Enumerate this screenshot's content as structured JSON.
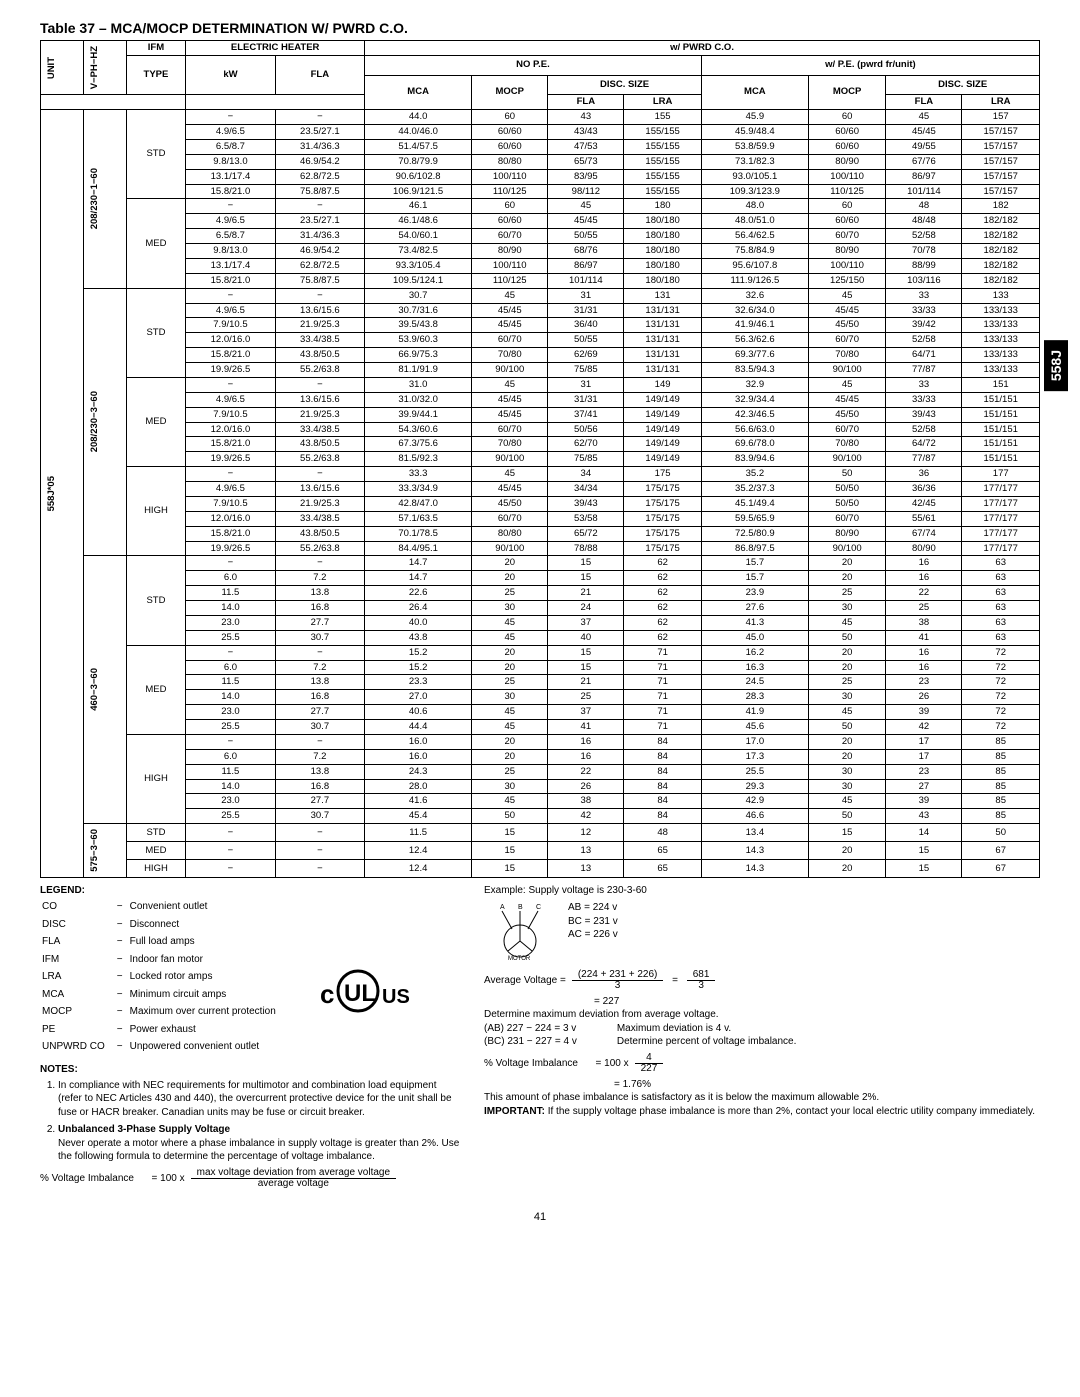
{
  "title": "Table 37 – MCA/MOCP DETERMINATION W/ PWRD C.O.",
  "side_tab": "558J",
  "headers": {
    "unit": "UNIT",
    "vph": "V−PH−HZ",
    "ifm": "IFM",
    "type": "TYPE",
    "eh": "ELECTRIC HEATER",
    "kw": "kW",
    "fla_h": "FLA",
    "pwrd": "w/ PWRD C.O.",
    "nope": "NO P.E.",
    "wpe": "w/ P.E. (pwrd fr/unit)",
    "mca": "MCA",
    "mocp": "MOCP",
    "disc": "DISC. SIZE",
    "fla": "FLA",
    "lra": "LRA"
  },
  "unit": "558J*05",
  "voltages": [
    "208/230−1−60",
    "208/230−3−60",
    "460−3−60",
    "575−3−60"
  ],
  "ifm_types": [
    "STD",
    "MED",
    "HIGH"
  ],
  "groups": [
    {
      "volt": 0,
      "ifm": 0,
      "rows": [
        [
          "−",
          "−",
          "44.0",
          "60",
          "43",
          "155",
          "45.9",
          "60",
          "45",
          "157"
        ],
        [
          "4.9/6.5",
          "23.5/27.1",
          "44.0/46.0",
          "60/60",
          "43/43",
          "155/155",
          "45.9/48.4",
          "60/60",
          "45/45",
          "157/157"
        ],
        [
          "6.5/8.7",
          "31.4/36.3",
          "51.4/57.5",
          "60/60",
          "47/53",
          "155/155",
          "53.8/59.9",
          "60/60",
          "49/55",
          "157/157"
        ],
        [
          "9.8/13.0",
          "46.9/54.2",
          "70.8/79.9",
          "80/80",
          "65/73",
          "155/155",
          "73.1/82.3",
          "80/90",
          "67/76",
          "157/157"
        ],
        [
          "13.1/17.4",
          "62.8/72.5",
          "90.6/102.8",
          "100/110",
          "83/95",
          "155/155",
          "93.0/105.1",
          "100/110",
          "86/97",
          "157/157"
        ],
        [
          "15.8/21.0",
          "75.8/87.5",
          "106.9/121.5",
          "110/125",
          "98/112",
          "155/155",
          "109.3/123.9",
          "110/125",
          "101/114",
          "157/157"
        ]
      ]
    },
    {
      "volt": 0,
      "ifm": 1,
      "rows": [
        [
          "−",
          "−",
          "46.1",
          "60",
          "45",
          "180",
          "48.0",
          "60",
          "48",
          "182"
        ],
        [
          "4.9/6.5",
          "23.5/27.1",
          "46.1/48.6",
          "60/60",
          "45/45",
          "180/180",
          "48.0/51.0",
          "60/60",
          "48/48",
          "182/182"
        ],
        [
          "6.5/8.7",
          "31.4/36.3",
          "54.0/60.1",
          "60/70",
          "50/55",
          "180/180",
          "56.4/62.5",
          "60/70",
          "52/58",
          "182/182"
        ],
        [
          "9.8/13.0",
          "46.9/54.2",
          "73.4/82.5",
          "80/90",
          "68/76",
          "180/180",
          "75.8/84.9",
          "80/90",
          "70/78",
          "182/182"
        ],
        [
          "13.1/17.4",
          "62.8/72.5",
          "93.3/105.4",
          "100/110",
          "86/97",
          "180/180",
          "95.6/107.8",
          "100/110",
          "88/99",
          "182/182"
        ],
        [
          "15.8/21.0",
          "75.8/87.5",
          "109.5/124.1",
          "110/125",
          "101/114",
          "180/180",
          "111.9/126.5",
          "125/150",
          "103/116",
          "182/182"
        ]
      ]
    },
    {
      "volt": 1,
      "ifm": 0,
      "rows": [
        [
          "−",
          "−",
          "30.7",
          "45",
          "31",
          "131",
          "32.6",
          "45",
          "33",
          "133"
        ],
        [
          "4.9/6.5",
          "13.6/15.6",
          "30.7/31.6",
          "45/45",
          "31/31",
          "131/131",
          "32.6/34.0",
          "45/45",
          "33/33",
          "133/133"
        ],
        [
          "7.9/10.5",
          "21.9/25.3",
          "39.5/43.8",
          "45/45",
          "36/40",
          "131/131",
          "41.9/46.1",
          "45/50",
          "39/42",
          "133/133"
        ],
        [
          "12.0/16.0",
          "33.4/38.5",
          "53.9/60.3",
          "60/70",
          "50/55",
          "131/131",
          "56.3/62.6",
          "60/70",
          "52/58",
          "133/133"
        ],
        [
          "15.8/21.0",
          "43.8/50.5",
          "66.9/75.3",
          "70/80",
          "62/69",
          "131/131",
          "69.3/77.6",
          "70/80",
          "64/71",
          "133/133"
        ],
        [
          "19.9/26.5",
          "55.2/63.8",
          "81.1/91.9",
          "90/100",
          "75/85",
          "131/131",
          "83.5/94.3",
          "90/100",
          "77/87",
          "133/133"
        ]
      ]
    },
    {
      "volt": 1,
      "ifm": 1,
      "rows": [
        [
          "−",
          "−",
          "31.0",
          "45",
          "31",
          "149",
          "32.9",
          "45",
          "33",
          "151"
        ],
        [
          "4.9/6.5",
          "13.6/15.6",
          "31.0/32.0",
          "45/45",
          "31/31",
          "149/149",
          "32.9/34.4",
          "45/45",
          "33/33",
          "151/151"
        ],
        [
          "7.9/10.5",
          "21.9/25.3",
          "39.9/44.1",
          "45/45",
          "37/41",
          "149/149",
          "42.3/46.5",
          "45/50",
          "39/43",
          "151/151"
        ],
        [
          "12.0/16.0",
          "33.4/38.5",
          "54.3/60.6",
          "60/70",
          "50/56",
          "149/149",
          "56.6/63.0",
          "60/70",
          "52/58",
          "151/151"
        ],
        [
          "15.8/21.0",
          "43.8/50.5",
          "67.3/75.6",
          "70/80",
          "62/70",
          "149/149",
          "69.6/78.0",
          "70/80",
          "64/72",
          "151/151"
        ],
        [
          "19.9/26.5",
          "55.2/63.8",
          "81.5/92.3",
          "90/100",
          "75/85",
          "149/149",
          "83.9/94.6",
          "90/100",
          "77/87",
          "151/151"
        ]
      ]
    },
    {
      "volt": 1,
      "ifm": 2,
      "rows": [
        [
          "−",
          "−",
          "33.3",
          "45",
          "34",
          "175",
          "35.2",
          "50",
          "36",
          "177"
        ],
        [
          "4.9/6.5",
          "13.6/15.6",
          "33.3/34.9",
          "45/45",
          "34/34",
          "175/175",
          "35.2/37.3",
          "50/50",
          "36/36",
          "177/177"
        ],
        [
          "7.9/10.5",
          "21.9/25.3",
          "42.8/47.0",
          "45/50",
          "39/43",
          "175/175",
          "45.1/49.4",
          "50/50",
          "42/45",
          "177/177"
        ],
        [
          "12.0/16.0",
          "33.4/38.5",
          "57.1/63.5",
          "60/70",
          "53/58",
          "175/175",
          "59.5/65.9",
          "60/70",
          "55/61",
          "177/177"
        ],
        [
          "15.8/21.0",
          "43.8/50.5",
          "70.1/78.5",
          "80/80",
          "65/72",
          "175/175",
          "72.5/80.9",
          "80/90",
          "67/74",
          "177/177"
        ],
        [
          "19.9/26.5",
          "55.2/63.8",
          "84.4/95.1",
          "90/100",
          "78/88",
          "175/175",
          "86.8/97.5",
          "90/100",
          "80/90",
          "177/177"
        ]
      ]
    },
    {
      "volt": 2,
      "ifm": 0,
      "rows": [
        [
          "−",
          "−",
          "14.7",
          "20",
          "15",
          "62",
          "15.7",
          "20",
          "16",
          "63"
        ],
        [
          "6.0",
          "7.2",
          "14.7",
          "20",
          "15",
          "62",
          "15.7",
          "20",
          "16",
          "63"
        ],
        [
          "11.5",
          "13.8",
          "22.6",
          "25",
          "21",
          "62",
          "23.9",
          "25",
          "22",
          "63"
        ],
        [
          "14.0",
          "16.8",
          "26.4",
          "30",
          "24",
          "62",
          "27.6",
          "30",
          "25",
          "63"
        ],
        [
          "23.0",
          "27.7",
          "40.0",
          "45",
          "37",
          "62",
          "41.3",
          "45",
          "38",
          "63"
        ],
        [
          "25.5",
          "30.7",
          "43.8",
          "45",
          "40",
          "62",
          "45.0",
          "50",
          "41",
          "63"
        ]
      ]
    },
    {
      "volt": 2,
      "ifm": 1,
      "rows": [
        [
          "−",
          "−",
          "15.2",
          "20",
          "15",
          "71",
          "16.2",
          "20",
          "16",
          "72"
        ],
        [
          "6.0",
          "7.2",
          "15.2",
          "20",
          "15",
          "71",
          "16.3",
          "20",
          "16",
          "72"
        ],
        [
          "11.5",
          "13.8",
          "23.3",
          "25",
          "21",
          "71",
          "24.5",
          "25",
          "23",
          "72"
        ],
        [
          "14.0",
          "16.8",
          "27.0",
          "30",
          "25",
          "71",
          "28.3",
          "30",
          "26",
          "72"
        ],
        [
          "23.0",
          "27.7",
          "40.6",
          "45",
          "37",
          "71",
          "41.9",
          "45",
          "39",
          "72"
        ],
        [
          "25.5",
          "30.7",
          "44.4",
          "45",
          "41",
          "71",
          "45.6",
          "50",
          "42",
          "72"
        ]
      ]
    },
    {
      "volt": 2,
      "ifm": 2,
      "rows": [
        [
          "−",
          "−",
          "16.0",
          "20",
          "16",
          "84",
          "17.0",
          "20",
          "17",
          "85"
        ],
        [
          "6.0",
          "7.2",
          "16.0",
          "20",
          "16",
          "84",
          "17.3",
          "20",
          "17",
          "85"
        ],
        [
          "11.5",
          "13.8",
          "24.3",
          "25",
          "22",
          "84",
          "25.5",
          "30",
          "23",
          "85"
        ],
        [
          "14.0",
          "16.8",
          "28.0",
          "30",
          "26",
          "84",
          "29.3",
          "30",
          "27",
          "85"
        ],
        [
          "23.0",
          "27.7",
          "41.6",
          "45",
          "38",
          "84",
          "42.9",
          "45",
          "39",
          "85"
        ],
        [
          "25.5",
          "30.7",
          "45.4",
          "50",
          "42",
          "84",
          "46.6",
          "50",
          "43",
          "85"
        ]
      ]
    },
    {
      "volt": 3,
      "ifm": 0,
      "rows": [
        [
          "−",
          "−",
          "11.5",
          "15",
          "12",
          "48",
          "13.4",
          "15",
          "14",
          "50"
        ]
      ]
    },
    {
      "volt": 3,
      "ifm": 1,
      "rows": [
        [
          "−",
          "−",
          "12.4",
          "15",
          "13",
          "65",
          "14.3",
          "20",
          "15",
          "67"
        ]
      ]
    },
    {
      "volt": 3,
      "ifm": 2,
      "rows": [
        [
          "−",
          "−",
          "12.4",
          "15",
          "13",
          "65",
          "14.3",
          "20",
          "15",
          "67"
        ]
      ]
    }
  ],
  "legend_title": "LEGEND:",
  "legend": [
    [
      "CO",
      "Convenient outlet"
    ],
    [
      "DISC",
      "Disconnect"
    ],
    [
      "FLA",
      "Full load amps"
    ],
    [
      "IFM",
      "Indoor fan motor"
    ],
    [
      "LRA",
      "Locked rotor amps"
    ],
    [
      "MCA",
      "Minimum circuit amps"
    ],
    [
      "MOCP",
      "Maximum over current protection"
    ],
    [
      "PE",
      "Power exhaust"
    ],
    [
      "UNPWRD CO",
      "Unpowered convenient outlet"
    ]
  ],
  "notes_title": "NOTES:",
  "note1": "In compliance with NEC requirements for multimotor and combination load equipment (refer to NEC Articles 430 and 440), the overcurrent protective device for the unit shall be fuse or HACR breaker. Canadian units may be fuse or circuit breaker.",
  "note2_title": "Unbalanced 3-Phase Supply Voltage",
  "note2_body": "Never operate a motor where a phase imbalance in supply voltage is greater than 2%. Use the following formula to determine the percentage of voltage imbalance.",
  "formula_label": "% Voltage Imbalance",
  "formula_eq": "= 100 x",
  "formula_top": "max voltage deviation from average voltage",
  "formula_bot": "average voltage",
  "example_title": "Example: Supply voltage is 230-3-60",
  "ab": "AB = 224 v",
  "bc": "BC = 231 v",
  "ac": "AC = 226 v",
  "avg_label": "Average Voltage  =",
  "avg_top": "(224 + 231 + 226)",
  "avg_bot1": "3",
  "avg_top2": "681",
  "avg_bot2": "3",
  "avg_result": "=     227",
  "det_max": "Determine maximum deviation from average voltage.",
  "dev1": "(AB) 227 − 224 = 3 v",
  "dev2": "(BC) 231 − 227 = 4 v",
  "max_dev": "Maximum deviation is 4 v.",
  "det_pct": "Determine percent of voltage imbalance.",
  "pct_label": "% Voltage Imbalance",
  "pct_eq": "= 100  x",
  "pct_top": "4",
  "pct_bot": "227",
  "pct_result": "= 1.76%",
  "conclusion": "This amount of phase imbalance is satisfactory as it is below the maximum allowable 2%.",
  "important_label": "IMPORTANT:",
  "important": "If the supply voltage phase imbalance is more than 2%, contact your local electric utility company immediately.",
  "page": "41"
}
